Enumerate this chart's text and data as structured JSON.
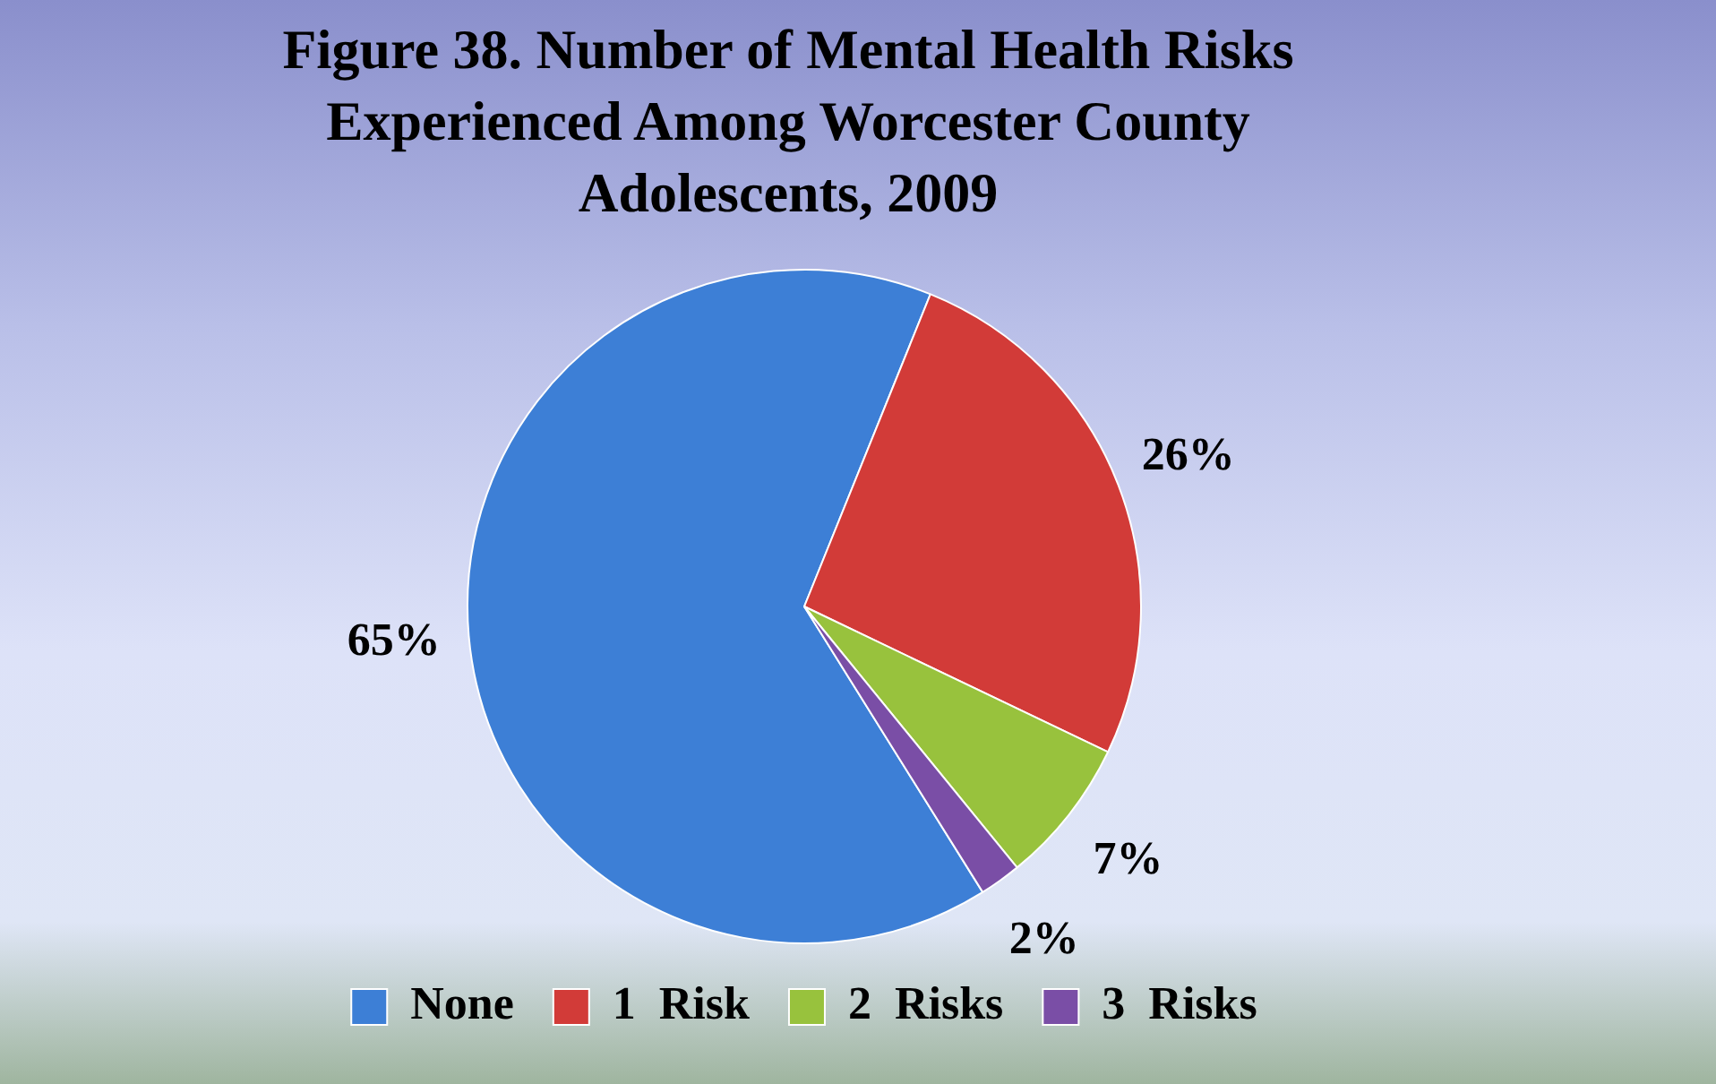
{
  "chart_data": {
    "type": "pie",
    "title": "Figure 38. Number of Mental Health Risks Experienced Among Worcester County Adolescents, 2009",
    "categories": [
      "None",
      "1  Risk",
      "2  Risks",
      "3  Risks"
    ],
    "values": [
      65,
      26,
      7,
      2
    ],
    "colors": [
      "#3d7fd6",
      "#d23b38",
      "#98c23d",
      "#7a4ea6"
    ],
    "value_labels": [
      "65%",
      "26%",
      "7%",
      "2%"
    ],
    "legend": "bottom"
  }
}
